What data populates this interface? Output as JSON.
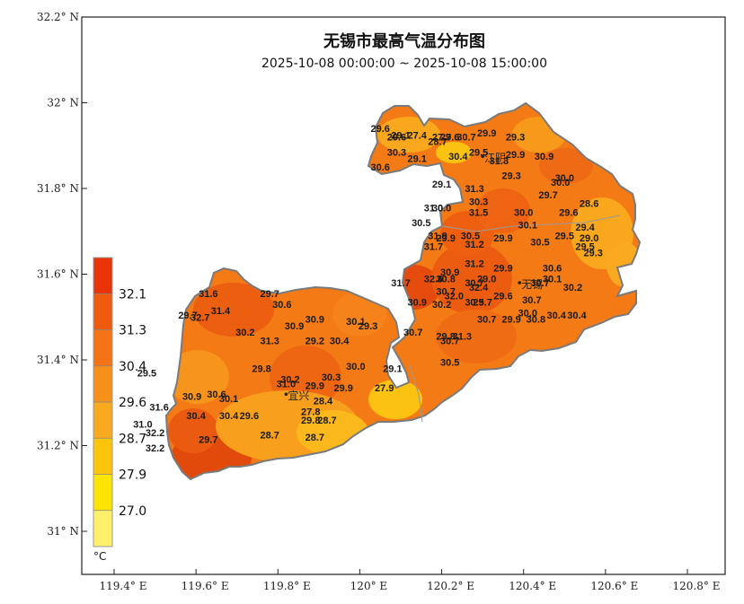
{
  "map": {
    "title": "无锡市最高气温分布图",
    "subtitle": "2025-10-08 00:00:00 ~ 2025-10-08 15:00:00",
    "y_ticks": [
      "32.2° N",
      "32° N",
      "31.8° N",
      "31.6° N",
      "31.4° N",
      "31.2° N",
      "31° N"
    ],
    "x_ticks": [
      "119.4° E",
      "119.6° E",
      "119.8° E",
      "120° E",
      "120.2° E",
      "120.4° E",
      "120.6° E",
      "120.8° E"
    ],
    "cities": [
      {
        "name": "江阴",
        "lon": 120.3,
        "lat": 31.875
      },
      {
        "name": "无锡",
        "lon": 120.39,
        "lat": 31.58
      },
      {
        "name": "宜兴",
        "lon": 119.82,
        "lat": 31.32
      }
    ],
    "legend": {
      "unit": "°C",
      "labels": [
        "32.1",
        "31.3",
        "30.4",
        "29.6",
        "28.7",
        "27.9",
        "27.0"
      ],
      "colors": [
        "#e83408",
        "#ef5a0e",
        "#f47415",
        "#f7901a",
        "#f9a91d",
        "#fcc40a",
        "#fde402",
        "#fdf16c"
      ]
    },
    "stations": [
      {
        "v": "29.6",
        "lon": 120.05,
        "lat": 31.94
      },
      {
        "v": "29.6",
        "lon": 120.09,
        "lat": 31.92
      },
      {
        "v": "29.1",
        "lon": 120.1,
        "lat": 31.925
      },
      {
        "v": "27.4",
        "lon": 120.14,
        "lat": 31.925
      },
      {
        "v": "27.7",
        "lon": 120.2,
        "lat": 31.92
      },
      {
        "v": "28.7",
        "lon": 120.19,
        "lat": 31.91
      },
      {
        "v": "29.6",
        "lon": 120.22,
        "lat": 31.92
      },
      {
        "v": "30.7",
        "lon": 120.26,
        "lat": 31.92
      },
      {
        "v": "29.9",
        "lon": 120.31,
        "lat": 31.93
      },
      {
        "v": "29.3",
        "lon": 120.38,
        "lat": 31.92
      },
      {
        "v": "30.3",
        "lon": 120.09,
        "lat": 31.885
      },
      {
        "v": "29.1",
        "lon": 120.14,
        "lat": 31.87
      },
      {
        "v": "30.4",
        "lon": 120.24,
        "lat": 31.875
      },
      {
        "v": "29.5",
        "lon": 120.29,
        "lat": 31.885
      },
      {
        "v": "31.3",
        "lon": 120.34,
        "lat": 31.865
      },
      {
        "v": "29.9",
        "lon": 120.38,
        "lat": 31.88
      },
      {
        "v": "30.9",
        "lon": 120.45,
        "lat": 31.875
      },
      {
        "v": "30.6",
        "lon": 120.05,
        "lat": 31.85
      },
      {
        "v": "29.3",
        "lon": 120.37,
        "lat": 31.83
      },
      {
        "v": "30.0",
        "lon": 120.5,
        "lat": 31.825
      },
      {
        "v": "30.0",
        "lon": 120.49,
        "lat": 31.815
      },
      {
        "v": "29.1",
        "lon": 120.2,
        "lat": 31.81
      },
      {
        "v": "31.3",
        "lon": 120.28,
        "lat": 31.8
      },
      {
        "v": "29.7",
        "lon": 120.46,
        "lat": 31.785
      },
      {
        "v": "30.3",
        "lon": 120.29,
        "lat": 31.77
      },
      {
        "v": "28.6",
        "lon": 120.56,
        "lat": 31.765
      },
      {
        "v": "31.0",
        "lon": 120.18,
        "lat": 31.755
      },
      {
        "v": "30.0",
        "lon": 120.2,
        "lat": 31.755
      },
      {
        "v": "31.5",
        "lon": 120.29,
        "lat": 31.745
      },
      {
        "v": "30.0",
        "lon": 120.4,
        "lat": 31.745
      },
      {
        "v": "29.6",
        "lon": 120.51,
        "lat": 31.745
      },
      {
        "v": "30.5",
        "lon": 120.15,
        "lat": 31.72
      },
      {
        "v": "30.1",
        "lon": 120.41,
        "lat": 31.715
      },
      {
        "v": "29.4",
        "lon": 120.55,
        "lat": 31.71
      },
      {
        "v": "31.9",
        "lon": 120.19,
        "lat": 31.69
      },
      {
        "v": "29.9",
        "lon": 120.21,
        "lat": 31.685
      },
      {
        "v": "30.5",
        "lon": 120.27,
        "lat": 31.69
      },
      {
        "v": "29.9",
        "lon": 120.35,
        "lat": 31.685
      },
      {
        "v": "29.5",
        "lon": 120.5,
        "lat": 31.69
      },
      {
        "v": "29.0",
        "lon": 120.56,
        "lat": 31.685
      },
      {
        "v": "31.7",
        "lon": 120.18,
        "lat": 31.665
      },
      {
        "v": "31.2",
        "lon": 120.28,
        "lat": 31.67
      },
      {
        "v": "30.5",
        "lon": 120.44,
        "lat": 31.675
      },
      {
        "v": "29.5",
        "lon": 120.55,
        "lat": 31.665
      },
      {
        "v": "29.3",
        "lon": 120.57,
        "lat": 31.65
      },
      {
        "v": "31.2",
        "lon": 120.28,
        "lat": 31.625
      },
      {
        "v": "30.9",
        "lon": 120.22,
        "lat": 31.605
      },
      {
        "v": "29.9",
        "lon": 120.35,
        "lat": 31.615
      },
      {
        "v": "30.6",
        "lon": 120.47,
        "lat": 31.615
      },
      {
        "v": "32.6",
        "lon": 120.18,
        "lat": 31.59
      },
      {
        "v": "30.8",
        "lon": 120.21,
        "lat": 31.59
      },
      {
        "v": "29.0",
        "lon": 120.31,
        "lat": 31.59
      },
      {
        "v": "30.1",
        "lon": 120.47,
        "lat": 31.59
      },
      {
        "v": "31.7",
        "lon": 120.1,
        "lat": 31.58
      },
      {
        "v": "30.7",
        "lon": 120.28,
        "lat": 31.58
      },
      {
        "v": "32.4",
        "lon": 120.29,
        "lat": 31.57
      },
      {
        "v": "30.7",
        "lon": 120.44,
        "lat": 31.58
      },
      {
        "v": "30.2",
        "lon": 120.52,
        "lat": 31.57
      },
      {
        "v": "30.7",
        "lon": 120.21,
        "lat": 31.56
      },
      {
        "v": "32.0",
        "lon": 120.23,
        "lat": 31.55
      },
      {
        "v": "29.6",
        "lon": 120.35,
        "lat": 31.55
      },
      {
        "v": "30.7",
        "lon": 120.42,
        "lat": 31.54
      },
      {
        "v": "30.9",
        "lon": 120.14,
        "lat": 31.535
      },
      {
        "v": "30.2",
        "lon": 120.2,
        "lat": 31.53
      },
      {
        "v": "30.5",
        "lon": 120.28,
        "lat": 31.535
      },
      {
        "v": "29.7",
        "lon": 120.3,
        "lat": 31.535
      },
      {
        "v": "30.0",
        "lon": 120.41,
        "lat": 31.51
      },
      {
        "v": "30.4",
        "lon": 120.48,
        "lat": 31.505
      },
      {
        "v": "30.4",
        "lon": 120.53,
        "lat": 31.505
      },
      {
        "v": "30.7",
        "lon": 120.31,
        "lat": 31.495
      },
      {
        "v": "29.9",
        "lon": 120.37,
        "lat": 31.495
      },
      {
        "v": "30.8",
        "lon": 120.43,
        "lat": 31.495
      },
      {
        "v": "30.7",
        "lon": 120.13,
        "lat": 31.465
      },
      {
        "v": "29.8",
        "lon": 120.21,
        "lat": 31.455
      },
      {
        "v": "31.3",
        "lon": 120.25,
        "lat": 31.455
      },
      {
        "v": "30.7",
        "lon": 120.22,
        "lat": 31.445
      },
      {
        "v": "30.5",
        "lon": 120.22,
        "lat": 31.395
      },
      {
        "v": "29.1",
        "lon": 120.08,
        "lat": 31.38
      },
      {
        "v": "27.9",
        "lon": 120.06,
        "lat": 31.335
      },
      {
        "v": "31.6",
        "lon": 119.63,
        "lat": 31.555
      },
      {
        "v": "29.7",
        "lon": 119.78,
        "lat": 31.555
      },
      {
        "v": "30.6",
        "lon": 119.81,
        "lat": 31.53
      },
      {
        "v": "31.4",
        "lon": 119.66,
        "lat": 31.515
      },
      {
        "v": "29.7",
        "lon": 119.58,
        "lat": 31.505
      },
      {
        "v": "32.7",
        "lon": 119.61,
        "lat": 31.5
      },
      {
        "v": "30.9",
        "lon": 119.89,
        "lat": 31.495
      },
      {
        "v": "30.1",
        "lon": 119.99,
        "lat": 31.49
      },
      {
        "v": "30.9",
        "lon": 119.84,
        "lat": 31.48
      },
      {
        "v": "29.3",
        "lon": 120.02,
        "lat": 31.48
      },
      {
        "v": "30.2",
        "lon": 119.72,
        "lat": 31.465
      },
      {
        "v": "31.3",
        "lon": 119.78,
        "lat": 31.445
      },
      {
        "v": "29.2",
        "lon": 119.89,
        "lat": 31.445
      },
      {
        "v": "30.4",
        "lon": 119.95,
        "lat": 31.445
      },
      {
        "v": "30.0",
        "lon": 119.99,
        "lat": 31.385
      },
      {
        "v": "29.5",
        "lon": 119.48,
        "lat": 31.37
      },
      {
        "v": "29.8",
        "lon": 119.76,
        "lat": 31.38
      },
      {
        "v": "30.3",
        "lon": 119.93,
        "lat": 31.36
      },
      {
        "v": "30.2",
        "lon": 119.83,
        "lat": 31.355
      },
      {
        "v": "31.0",
        "lon": 119.82,
        "lat": 31.345
      },
      {
        "v": "29.9",
        "lon": 119.89,
        "lat": 31.34
      },
      {
        "v": "29.9",
        "lon": 119.96,
        "lat": 31.335
      },
      {
        "v": "28.4",
        "lon": 119.91,
        "lat": 31.305
      },
      {
        "v": "30.6",
        "lon": 119.65,
        "lat": 31.32
      },
      {
        "v": "30.9",
        "lon": 119.59,
        "lat": 31.315
      },
      {
        "v": "30.1",
        "lon": 119.68,
        "lat": 31.31
      },
      {
        "v": "31.6",
        "lon": 119.51,
        "lat": 31.29
      },
      {
        "v": "27.8",
        "lon": 119.88,
        "lat": 31.28
      },
      {
        "v": "30.4",
        "lon": 119.6,
        "lat": 31.27
      },
      {
        "v": "30.4",
        "lon": 119.68,
        "lat": 31.27
      },
      {
        "v": "29.6",
        "lon": 119.73,
        "lat": 31.27
      },
      {
        "v": "29.8",
        "lon": 119.88,
        "lat": 31.26
      },
      {
        "v": "28.7",
        "lon": 119.92,
        "lat": 31.26
      },
      {
        "v": "31.0",
        "lon": 119.47,
        "lat": 31.25
      },
      {
        "v": "32.2",
        "lon": 119.5,
        "lat": 31.23
      },
      {
        "v": "28.7",
        "lon": 119.78,
        "lat": 31.225
      },
      {
        "v": "28.7",
        "lon": 119.89,
        "lat": 31.22
      },
      {
        "v": "29.7",
        "lon": 119.63,
        "lat": 31.215
      },
      {
        "v": "32.2",
        "lon": 119.5,
        "lat": 31.195
      }
    ]
  }
}
